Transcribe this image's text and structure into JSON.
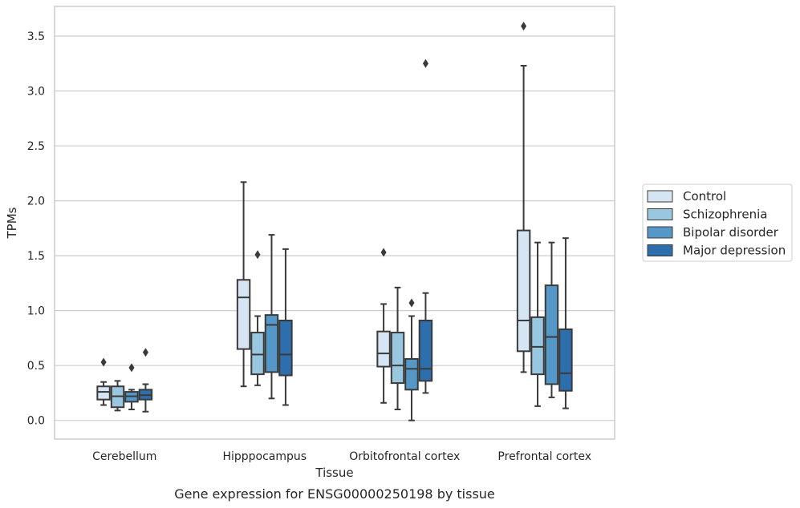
{
  "chart_data": {
    "type": "box",
    "title": "",
    "caption": "Gene expression for ENSG00000250198 by tissue",
    "xlabel": "Tissue",
    "ylabel": "TPMs",
    "ylim": [
      -0.17,
      3.77
    ],
    "yticks": [
      0.0,
      0.5,
      1.0,
      1.5,
      2.0,
      2.5,
      3.0,
      3.5
    ],
    "ytick_labels": [
      "0.0",
      "0.5",
      "1.0",
      "1.5",
      "2.0",
      "2.5",
      "3.0",
      "3.5"
    ],
    "grid": "horizontal",
    "legend_placement": "right",
    "categories": [
      "Cerebellum",
      "Hipppocampus",
      "Orbitofrontal cortex",
      "Prefrontal cortex"
    ],
    "series": [
      {
        "name": "Control",
        "color": "#d6e5f3",
        "boxes": [
          {
            "whislo": 0.14,
            "q1": 0.19,
            "med": 0.26,
            "q3": 0.31,
            "whishi": 0.35,
            "fliers": [
              0.53
            ]
          },
          {
            "whislo": 0.31,
            "q1": 0.65,
            "med": 1.12,
            "q3": 1.28,
            "whishi": 2.17,
            "fliers": []
          },
          {
            "whislo": 0.16,
            "q1": 0.49,
            "med": 0.61,
            "q3": 0.81,
            "whishi": 1.06,
            "fliers": [
              1.53
            ]
          },
          {
            "whislo": 0.44,
            "q1": 0.63,
            "med": 0.91,
            "q3": 1.73,
            "whishi": 3.23,
            "fliers": [
              3.59
            ]
          }
        ]
      },
      {
        "name": "Schizophrenia",
        "color": "#9ac7e0",
        "boxes": [
          {
            "whislo": 0.09,
            "q1": 0.12,
            "med": 0.22,
            "q3": 0.31,
            "whishi": 0.36,
            "fliers": []
          },
          {
            "whislo": 0.32,
            "q1": 0.42,
            "med": 0.6,
            "q3": 0.8,
            "whishi": 0.95,
            "fliers": [
              1.51
            ]
          },
          {
            "whislo": 0.1,
            "q1": 0.34,
            "med": 0.5,
            "q3": 0.8,
            "whishi": 1.21,
            "fliers": []
          },
          {
            "whislo": 0.13,
            "q1": 0.42,
            "med": 0.67,
            "q3": 0.94,
            "whishi": 1.62,
            "fliers": []
          }
        ]
      },
      {
        "name": "Bipolar disorder",
        "color": "#5598c8",
        "boxes": [
          {
            "whislo": 0.1,
            "q1": 0.17,
            "med": 0.22,
            "q3": 0.26,
            "whishi": 0.28,
            "fliers": [
              0.48
            ]
          },
          {
            "whislo": 0.2,
            "q1": 0.44,
            "med": 0.87,
            "q3": 0.96,
            "whishi": 1.69,
            "fliers": []
          },
          {
            "whislo": 0.0,
            "q1": 0.28,
            "med": 0.47,
            "q3": 0.56,
            "whishi": 0.95,
            "fliers": [
              1.07
            ]
          },
          {
            "whislo": 0.21,
            "q1": 0.33,
            "med": 0.76,
            "q3": 1.23,
            "whishi": 1.62,
            "fliers": []
          }
        ]
      },
      {
        "name": "Major depression",
        "color": "#2d6fac",
        "boxes": [
          {
            "whislo": 0.08,
            "q1": 0.19,
            "med": 0.23,
            "q3": 0.28,
            "whishi": 0.33,
            "fliers": [
              0.62
            ]
          },
          {
            "whislo": 0.14,
            "q1": 0.41,
            "med": 0.6,
            "q3": 0.91,
            "whishi": 1.56,
            "fliers": []
          },
          {
            "whislo": 0.25,
            "q1": 0.36,
            "med": 0.47,
            "q3": 0.91,
            "whishi": 1.16,
            "fliers": [
              3.25
            ]
          },
          {
            "whislo": 0.11,
            "q1": 0.27,
            "med": 0.43,
            "q3": 0.83,
            "whishi": 1.66,
            "fliers": []
          }
        ]
      }
    ]
  }
}
